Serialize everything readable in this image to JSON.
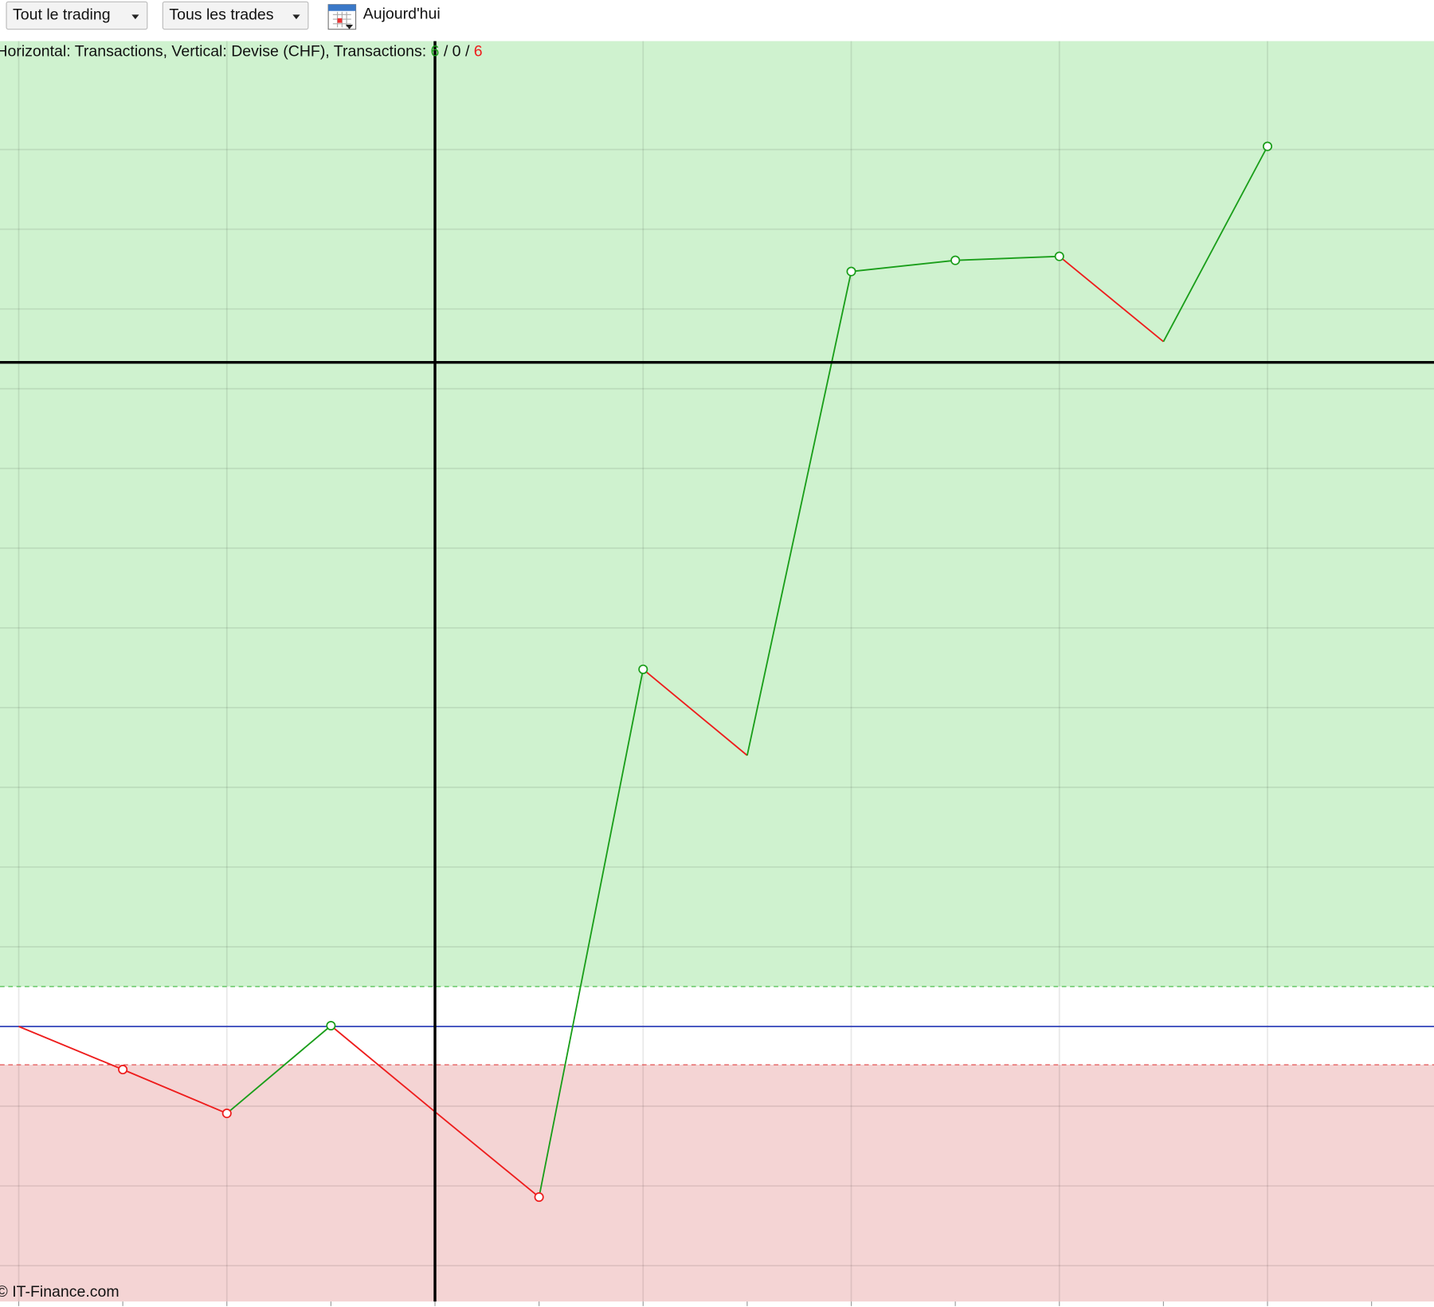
{
  "toolbar": {
    "buttons": [
      "Tout le trading",
      "Tous les trades"
    ],
    "date_label": "Aujourd'hui"
  },
  "chart_data": {
    "type": "line",
    "info": "Horizontal: Transactions, Vertical: Devise (CHF), Transactions:",
    "wins": 6,
    "neutral": 0,
    "losses": 6,
    "separator": "/",
    "x": [
      0,
      1,
      2,
      3,
      4,
      5,
      6,
      7,
      8,
      9,
      10,
      11,
      12
    ],
    "values": [
      0,
      -0.54,
      -1.09,
      0.01,
      -1.07,
      -2.14,
      4.48,
      3.4,
      9.47,
      9.61,
      9.66,
      8.59,
      11.04
    ],
    "markers": [
      false,
      true,
      true,
      true,
      false,
      true,
      true,
      false,
      true,
      true,
      true,
      false,
      true
    ],
    "up_color": "#1a9e1a",
    "down_color": "#ee1c1c",
    "xlim": [
      -0.18,
      13.6
    ],
    "xticks": [
      0,
      2,
      4,
      6,
      8,
      10,
      12
    ],
    "xminor_ticks": [
      1,
      3,
      5,
      7,
      9,
      11,
      13
    ],
    "ylim": [
      -3.45,
      12.36
    ],
    "yticks": [
      -3,
      -2,
      -1,
      0,
      1,
      2,
      3,
      4,
      5,
      6,
      7,
      8,
      9,
      10,
      11
    ],
    "baseline": 0,
    "upper_threshold": 0.5,
    "lower_threshold": -0.48,
    "crosshair": {
      "x": 4,
      "y": 8.33
    },
    "footer": "© IT-Finance.com"
  }
}
